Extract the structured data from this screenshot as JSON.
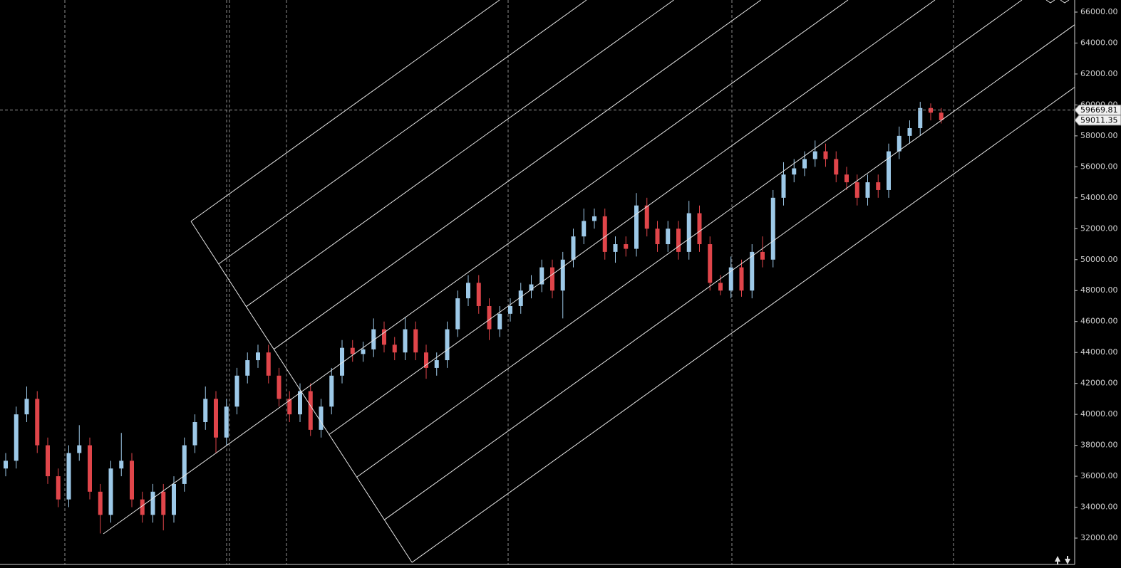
{
  "chart_data": {
    "type": "candlestick",
    "up_color": "#9dc9e8",
    "down_color": "#e0454a",
    "ylim": [
      30068,
      66782
    ],
    "yticks": [
      {
        "value": 32000,
        "label": "32000.00"
      },
      {
        "value": 34000,
        "label": "34000.00"
      },
      {
        "value": 36000,
        "label": "36000.00"
      },
      {
        "value": 38000,
        "label": "38000.00"
      },
      {
        "value": 40000,
        "label": "40000.00"
      },
      {
        "value": 42000,
        "label": "42000.00"
      },
      {
        "value": 44000,
        "label": "44000.00"
      },
      {
        "value": 46000,
        "label": "46000.00"
      },
      {
        "value": 48000,
        "label": "48000.00"
      },
      {
        "value": 50000,
        "label": "50000.00"
      },
      {
        "value": 52000,
        "label": "52000.00"
      },
      {
        "value": 54000,
        "label": "54000.00"
      },
      {
        "value": 56000,
        "label": "56000.00"
      },
      {
        "value": 58000,
        "label": "58000.00"
      },
      {
        "value": 60000,
        "label": "60000.00"
      },
      {
        "value": 62000,
        "label": "62000.00"
      },
      {
        "value": 64000,
        "label": "64000.00"
      },
      {
        "value": 66000,
        "label": "66000.00"
      }
    ],
    "price_labels": [
      59669.81,
      59011.35
    ],
    "open": [
      36500,
      37000,
      40000,
      41000,
      38000,
      36000,
      34500,
      37500,
      38000,
      35000,
      33500,
      36500,
      37000,
      34500,
      33500,
      35000,
      33500,
      35500,
      38000,
      39500,
      41000,
      38500,
      40500,
      42500,
      43500,
      44000,
      42500,
      41000,
      40000,
      41500,
      39000,
      40500,
      42500,
      44300,
      43900,
      44200,
      45500,
      44500,
      44000,
      45500,
      44000,
      43000,
      43500,
      45500,
      47500,
      48500,
      47000,
      45500,
      46500,
      47000,
      48000,
      48400,
      49500,
      48000,
      50000,
      51500,
      52500,
      52800,
      50500,
      51000,
      50700,
      53500,
      52000,
      51000,
      52000,
      50500,
      53000,
      51000,
      48500,
      48000,
      49500,
      48000,
      50500,
      50000,
      54000,
      55500,
      55900,
      56500,
      57000,
      56500,
      55500,
      55000,
      54000,
      55000,
      54500,
      57000,
      58000,
      58500,
      59800,
      59500
    ],
    "high": [
      37500,
      40500,
      41800,
      41500,
      38500,
      36500,
      38000,
      39300,
      38500,
      35500,
      37000,
      38800,
      37500,
      35000,
      35500,
      35500,
      36000,
      38500,
      40000,
      41800,
      41500,
      41000,
      43000,
      44000,
      44500,
      44500,
      43000,
      41500,
      42000,
      42000,
      41000,
      43000,
      44800,
      44800,
      44700,
      46200,
      46000,
      45000,
      46300,
      46000,
      44500,
      44000,
      46000,
      48000,
      49000,
      49000,
      47500,
      47000,
      47500,
      48500,
      49000,
      50000,
      50000,
      50500,
      52000,
      53300,
      53300,
      53300,
      51500,
      51500,
      54300,
      54000,
      52500,
      52500,
      52500,
      53800,
      53500,
      51500,
      49000,
      50200,
      50000,
      51000,
      51500,
      54500,
      56300,
      56500,
      57000,
      57700,
      57500,
      57000,
      56000,
      55500,
      55500,
      55500,
      57500,
      58600,
      59000,
      60200,
      60100,
      59800
    ],
    "low": [
      36000,
      36500,
      39500,
      37500,
      35500,
      34000,
      34000,
      37000,
      34500,
      32300,
      33000,
      36000,
      34000,
      33000,
      33000,
      32500,
      33000,
      35000,
      37500,
      39000,
      37500,
      38000,
      40000,
      42000,
      43000,
      42000,
      40500,
      39500,
      39500,
      38600,
      38500,
      40000,
      42000,
      43400,
      43400,
      43700,
      44000,
      43500,
      43500,
      43500,
      42300,
      42500,
      43000,
      45000,
      47000,
      46500,
      44800,
      45000,
      46000,
      46500,
      47500,
      47900,
      47500,
      46200,
      49500,
      51000,
      52000,
      50000,
      49800,
      50200,
      50200,
      51500,
      50500,
      50500,
      50000,
      50000,
      50500,
      48000,
      47700,
      47500,
      47600,
      47500,
      49500,
      49500,
      53500,
      55000,
      55400,
      56000,
      56000,
      55000,
      54500,
      53500,
      53500,
      54000,
      54000,
      56500,
      57500,
      58000,
      59000,
      58800
    ],
    "close": [
      37000,
      40000,
      41000,
      38000,
      36000,
      34500,
      37500,
      38000,
      35000,
      33500,
      36500,
      37000,
      34500,
      33500,
      35000,
      33500,
      35500,
      38000,
      39500,
      41000,
      38500,
      40500,
      42500,
      43500,
      44000,
      42500,
      41000,
      40000,
      41500,
      39000,
      40500,
      42500,
      44300,
      43900,
      44200,
      45500,
      44500,
      44000,
      45500,
      44000,
      43000,
      43500,
      45500,
      47500,
      48500,
      47000,
      45500,
      46500,
      47000,
      48000,
      48400,
      49500,
      48000,
      50000,
      51500,
      52500,
      52800,
      50500,
      51000,
      50700,
      53500,
      52000,
      51000,
      52000,
      50500,
      53000,
      51000,
      48500,
      48000,
      49500,
      48000,
      50500,
      50000,
      54000,
      55500,
      55900,
      56500,
      57000,
      56500,
      55500,
      55000,
      54000,
      55000,
      54500,
      57000,
      58000,
      58500,
      59800,
      59500,
      59011.35
    ]
  }
}
